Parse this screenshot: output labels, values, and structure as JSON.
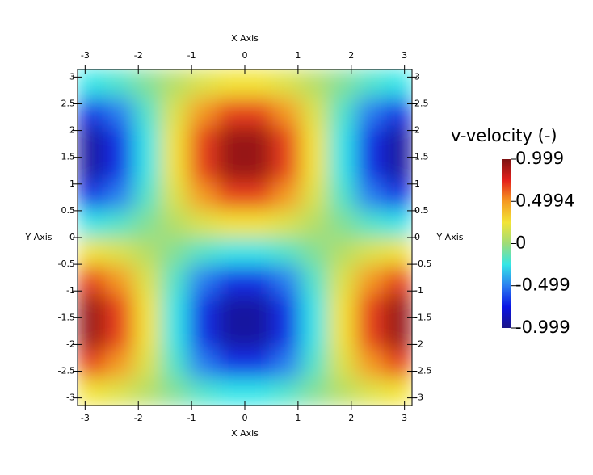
{
  "chart_data": {
    "type": "heatmap",
    "x_label": "X Axis",
    "y_label": "Y Axis",
    "xlim": [
      -3.14159,
      3.14159
    ],
    "ylim": [
      -3.14159,
      3.14159
    ],
    "xticks": [
      -3,
      -2,
      -1,
      0,
      1,
      2,
      3
    ],
    "yticks": [
      -3,
      -2.5,
      -2,
      -1.5,
      -1,
      -0.5,
      0,
      0.5,
      1,
      1.5,
      2,
      2.5,
      3
    ],
    "x": [
      -2.88,
      -2.36,
      -1.83,
      -1.31,
      -0.79,
      -0.26,
      0.26,
      0.79,
      1.31,
      1.83,
      2.36,
      2.88
    ],
    "y": [
      -2.88,
      -2.36,
      -1.83,
      -1.31,
      -0.79,
      -0.26,
      0.26,
      0.79,
      1.31,
      1.83,
      2.36,
      2.88
    ],
    "z": [
      [
        0.25,
        0.183,
        0.067,
        -0.067,
        -0.183,
        -0.25,
        -0.25,
        -0.183,
        -0.067,
        0.067,
        0.183,
        0.25
      ],
      [
        0.683,
        0.5,
        0.183,
        -0.183,
        -0.5,
        -0.683,
        -0.683,
        -0.5,
        -0.183,
        0.183,
        0.5,
        0.683
      ],
      [
        0.933,
        0.683,
        0.25,
        -0.25,
        -0.683,
        -0.933,
        -0.933,
        -0.683,
        -0.25,
        0.25,
        0.683,
        0.933
      ],
      [
        0.933,
        0.683,
        0.25,
        -0.25,
        -0.683,
        -0.933,
        -0.933,
        -0.683,
        -0.25,
        0.25,
        0.683,
        0.933
      ],
      [
        0.683,
        0.5,
        0.183,
        -0.183,
        -0.5,
        -0.683,
        -0.683,
        -0.5,
        -0.183,
        0.183,
        0.5,
        0.683
      ],
      [
        0.25,
        0.183,
        0.067,
        -0.067,
        -0.183,
        -0.25,
        -0.25,
        -0.183,
        -0.067,
        0.067,
        0.183,
        0.25
      ],
      [
        -0.25,
        -0.183,
        -0.067,
        0.067,
        0.183,
        0.25,
        0.25,
        0.183,
        0.067,
        -0.067,
        -0.183,
        -0.25
      ],
      [
        -0.683,
        -0.5,
        -0.183,
        0.183,
        0.5,
        0.683,
        0.683,
        0.5,
        0.183,
        -0.183,
        -0.5,
        -0.683
      ],
      [
        -0.933,
        -0.683,
        -0.25,
        0.25,
        0.683,
        0.933,
        0.933,
        0.683,
        0.25,
        -0.25,
        -0.683,
        -0.933
      ],
      [
        -0.933,
        -0.683,
        -0.25,
        0.25,
        0.683,
        0.933,
        0.933,
        0.683,
        0.25,
        -0.25,
        -0.683,
        -0.933
      ],
      [
        -0.683,
        -0.5,
        -0.183,
        0.183,
        0.5,
        0.683,
        0.683,
        0.5,
        0.183,
        -0.183,
        -0.5,
        -0.683
      ],
      [
        -0.25,
        -0.183,
        -0.067,
        0.067,
        0.183,
        0.25,
        0.25,
        0.183,
        0.067,
        -0.067,
        -0.183,
        -0.25
      ]
    ],
    "colorbar": {
      "title": "v-velocity (-)",
      "clim": [
        -0.999,
        0.999
      ],
      "ticks": [
        -0.999,
        -0.499,
        0,
        0.4994,
        0.999
      ]
    },
    "colormap": [
      "#1b1488",
      "#0b14e4",
      "#2a7ef0",
      "#33e6e6",
      "#9fdc78",
      "#f2e436",
      "#f59a22",
      "#e4201c",
      "#7c1212"
    ]
  }
}
